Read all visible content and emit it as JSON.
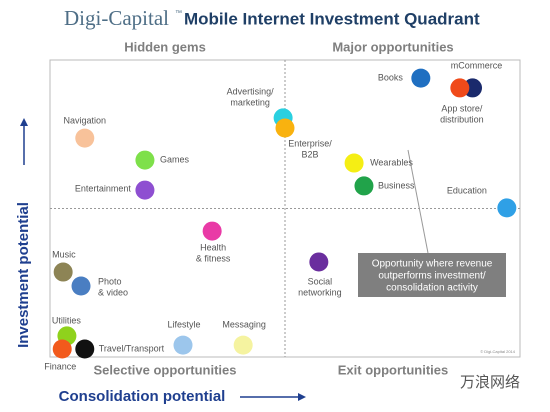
{
  "chart_data": {
    "type": "scatter",
    "brand": "Digi-Capital",
    "brand_mark": "™",
    "title": "Mobile Internet Investment Quadrant",
    "quadrant_labels": [
      "Hidden gems",
      "Major opportunities",
      "Selective opportunities",
      "Exit opportunities"
    ],
    "y_label": "Investment potential",
    "x_label": "Consolidation potential",
    "annotation": [
      "Opportunity where revenue",
      "outperforms investment/",
      "consolidation activity"
    ],
    "footnote": "© Digi-Capital 2014",
    "watermark": "万浪网络",
    "xlim": [
      0,
      100
    ],
    "ylim": [
      0,
      100
    ],
    "labels": [
      [
        "Books"
      ],
      [
        "mCommerce"
      ],
      [
        "App store/",
        "distribution"
      ],
      [
        "Advertising/",
        "marketing"
      ],
      [
        "Enterprise/",
        "B2B"
      ],
      [
        "Navigation"
      ],
      [
        "Games"
      ],
      [
        "Wearables"
      ],
      [
        "Entertainment"
      ],
      [
        "Business"
      ],
      [
        "Education"
      ],
      [
        "Health",
        "& fitness"
      ],
      [
        "Social",
        "networking"
      ],
      [
        "Music"
      ],
      [
        "Photo",
        "& video"
      ],
      [
        "Utilities"
      ],
      [
        "Finance"
      ],
      [
        "Travel/Transport"
      ],
      [
        "Lifestyle"
      ],
      [
        "Messaging"
      ]
    ],
    "x": [
      78.9,
      89.9,
      87.2,
      49.6,
      50.0,
      7.4,
      20.2,
      64.7,
      20.2,
      66.8,
      97.2,
      34.5,
      57.2,
      2.8,
      6.6,
      3.6,
      2.6,
      7.4,
      28.3,
      41.1
    ],
    "values": [
      93.9,
      90.6,
      90.6,
      80.5,
      77.1,
      73.7,
      66.3,
      65.3,
      56.2,
      57.6,
      50.2,
      42.4,
      32.0,
      28.6,
      23.9,
      7.1,
      2.7,
      2.7,
      4.0,
      4.0
    ],
    "colors": [
      "#1f6fc1",
      "#1a2a6c",
      "#f04a1a",
      "#2ad0e0",
      "#f9b20f",
      "#f8c29a",
      "#7ee04a",
      "#f5ee14",
      "#8e4fd1",
      "#21a34a",
      "#2fa0e6",
      "#e93aa6",
      "#6a2e9e",
      "#8d8455",
      "#4a7ec2",
      "#8fd21c",
      "#f25a1c",
      "#111111",
      "#9cc6ec",
      "#f5f3a0"
    ]
  }
}
